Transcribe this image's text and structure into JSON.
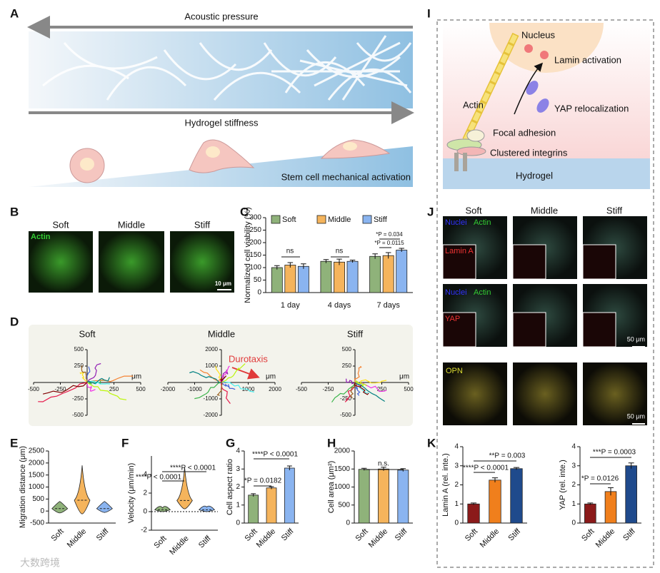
{
  "panels": {
    "letters": [
      "A",
      "B",
      "C",
      "D",
      "E",
      "F",
      "G",
      "H",
      "I",
      "J",
      "K"
    ],
    "a": {
      "top_arrow": "Acoustic pressure",
      "bottom_arrow": "Hydrogel stiffness",
      "cells": "Stem cell mechanical activation"
    },
    "b": {
      "columns": [
        "Soft",
        "Middle",
        "Stiff"
      ],
      "stain": "Actin",
      "scale_bar": "10 μm"
    },
    "d": {
      "annotation": "Durotaxis",
      "plots": [
        {
          "title": "Soft",
          "unit": "μm",
          "xlim": [
            -500,
            500
          ],
          "ylim": [
            -500,
            500
          ],
          "xticks": [
            -500,
            -250,
            250,
            500
          ],
          "yticks": [
            -500,
            -250,
            250,
            500
          ]
        },
        {
          "title": "Middle",
          "unit": "μm",
          "xlim": [
            -2000,
            2000
          ],
          "ylim": [
            -2000,
            2000
          ],
          "xticks": [
            -2000,
            -1000,
            1000,
            2000
          ],
          "yticks": [
            -2000,
            -1000,
            1000,
            2000
          ]
        },
        {
          "title": "Stiff",
          "unit": "μm",
          "xlim": [
            -500,
            500
          ],
          "ylim": [
            -500,
            500
          ],
          "xticks": [
            -500,
            -250,
            250,
            500
          ],
          "yticks": [
            -500,
            -250,
            250,
            500
          ]
        }
      ]
    },
    "i": {
      "nucleus": "Nucleus",
      "lamin": "Lamin activation",
      "actin": "Actin",
      "yap": "YAP relocalization",
      "focal": "Focal adhesion",
      "integrins": "Clustered integrins",
      "hydrogel": "Hydrogel"
    },
    "j": {
      "columns": [
        "Soft",
        "Middle",
        "Stiff"
      ],
      "row1": [
        "Nuclei",
        "Actin",
        "Lamin A"
      ],
      "row2": [
        "Nuclei",
        "Actin",
        "YAP"
      ],
      "row3": "OPN",
      "scale_bar_1": "50 μm",
      "scale_bar_2": "50 μm"
    },
    "watermark": "大数跨境"
  },
  "chart_data": [
    {
      "type": "grouped_bar",
      "ylabel": "Normalized cell viability (%)",
      "categories": [
        "1 day",
        "4 days",
        "7 days"
      ],
      "series": [
        {
          "name": "Soft",
          "color": "#8fb27a",
          "values": [
            100,
            125,
            145
          ],
          "errors": [
            8,
            7,
            10
          ]
        },
        {
          "name": "Middle",
          "color": "#f5b45c",
          "values": [
            110,
            122,
            148
          ],
          "errors": [
            10,
            12,
            12
          ]
        },
        {
          "name": "Stiff",
          "color": "#8ab4f0",
          "values": [
            105,
            125,
            170
          ],
          "errors": [
            10,
            5,
            7
          ]
        }
      ],
      "ylim": [
        0,
        300
      ],
      "yticks": [
        0,
        50,
        100,
        150,
        200,
        250,
        300
      ],
      "annotations": [
        "ns",
        "ns",
        "*P = 0.0115",
        "*P = 0.034"
      ]
    },
    {
      "type": "violin",
      "ylabel": "Migration distance (μm)",
      "categories": [
        "Soft",
        "Middle",
        "Stiff"
      ],
      "values": [
        100,
        450,
        100
      ],
      "min": [
        -80,
        -120,
        -60
      ],
      "max": [
        400,
        1900,
        400
      ],
      "colors": [
        "#8fb27a",
        "#f5b45c",
        "#8ab4f0"
      ],
      "ylim": [
        -500,
        2500
      ],
      "yticks": [
        -500,
        0,
        500,
        1000,
        1500,
        2000,
        2500
      ]
    },
    {
      "type": "violin",
      "ylabel": "Velocity (μm/min)",
      "categories": [
        "Soft",
        "Middle",
        "Stiff"
      ],
      "values": [
        0.2,
        1.2,
        0.2
      ],
      "min": [
        0,
        0.3,
        0
      ],
      "max": [
        0.4,
        4.8,
        0.5
      ],
      "colors": [
        "#8fb27a",
        "#f5b45c",
        "#8ab4f0"
      ],
      "ylim": [
        -2,
        6
      ],
      "yticks": [
        -2,
        0,
        2,
        4
      ],
      "zero_line": true,
      "annotations": [
        "****P < 0.0001",
        "****P < 0.0001"
      ]
    },
    {
      "type": "bar",
      "ylabel": "Cell aspect ratio",
      "categories": [
        "Soft",
        "Middle",
        "Stiff"
      ],
      "values": [
        1.55,
        1.95,
        3.05
      ],
      "errors": [
        0.08,
        0.07,
        0.12
      ],
      "colors": [
        "#8fb27a",
        "#f5b45c",
        "#8ab4f0"
      ],
      "ylim": [
        0,
        4
      ],
      "yticks": [
        0,
        1,
        2,
        3,
        4
      ],
      "annotations": [
        "*P = 0.0182",
        "****P < 0.0001"
      ]
    },
    {
      "type": "bar",
      "ylabel": "Cell area (μm²)",
      "categories": [
        "Soft",
        "Middle",
        "Stiff"
      ],
      "values": [
        1490,
        1500,
        1470
      ],
      "errors": [
        30,
        50,
        40
      ],
      "colors": [
        "#8fb27a",
        "#f5b45c",
        "#8ab4f0"
      ],
      "ylim": [
        0,
        2000
      ],
      "yticks": [
        0,
        500,
        1000,
        1500,
        2000
      ],
      "annotations": [
        "n.s."
      ]
    },
    {
      "type": "bar",
      "ylabel": "Lamin A (rel. inte.)",
      "categories": [
        "Soft",
        "Middle",
        "Stiff"
      ],
      "values": [
        1.0,
        2.25,
        2.85
      ],
      "errors": [
        0.05,
        0.12,
        0.06
      ],
      "colors": [
        "#8b1a1a",
        "#f07f1c",
        "#1f4a8c"
      ],
      "ylim": [
        0,
        4
      ],
      "yticks": [
        0,
        1,
        2,
        3,
        4
      ],
      "annotations": [
        "****P < 0.0001",
        "**P = 0.003"
      ]
    },
    {
      "type": "bar",
      "ylabel": "YAP (rel. inte.)",
      "categories": [
        "Soft",
        "Middle",
        "Stiff"
      ],
      "values": [
        1.0,
        1.65,
        3.0
      ],
      "errors": [
        0.05,
        0.2,
        0.15
      ],
      "colors": [
        "#8b1a1a",
        "#f07f1c",
        "#1f4a8c"
      ],
      "ylim": [
        0,
        4
      ],
      "yticks": [
        0,
        1,
        2,
        3,
        4
      ],
      "annotations": [
        "*P = 0.0126",
        "***P = 0.0003"
      ]
    }
  ]
}
